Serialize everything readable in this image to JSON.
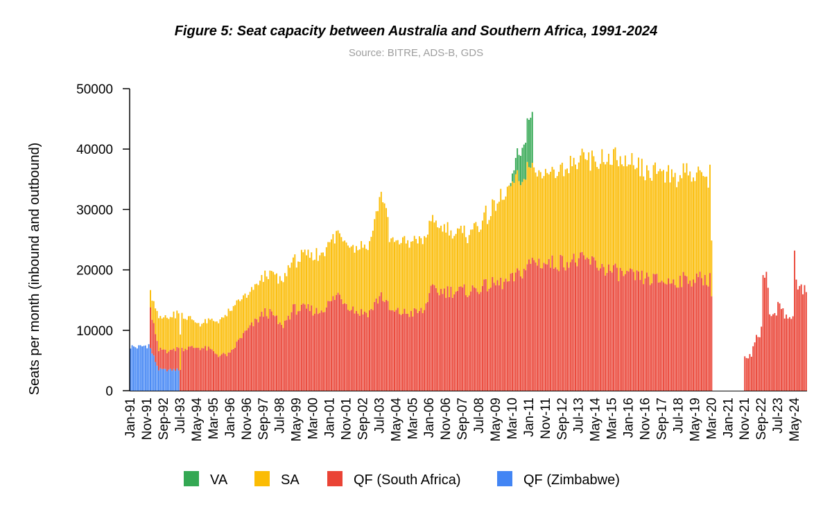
{
  "colors": {
    "VA": "#34a853",
    "SA": "#fbbc04",
    "QF (South Africa)": "#ea4335",
    "QF (Zimbabwe)": "#4285f4"
  },
  "chart_data": {
    "type": "bar",
    "stacked": true,
    "title": "Figure 5: Seat capacity between Australia and Southern Africa, 1991-2024",
    "subtitle": "Source: BITRE, ADS-B, GDS",
    "xlabel": "",
    "ylabel": "Seats per month (inbound and outbound)",
    "ylim": [
      0,
      50000
    ],
    "yticks": [
      0,
      10000,
      20000,
      30000,
      40000,
      50000
    ],
    "x_range": [
      "Jan-91",
      "Dec-24"
    ],
    "xtick_labels": [
      "Jan-91",
      "Nov-91",
      "Sep-92",
      "Jul-93",
      "May-94",
      "Mar-95",
      "Jan-96",
      "Nov-96",
      "Sep-97",
      "Jul-98",
      "May-99",
      "Mar-00",
      "Jan-01",
      "Nov-01",
      "Sep-02",
      "Jul-03",
      "May-04",
      "Mar-05",
      "Jan-06",
      "Nov-06",
      "Sep-07",
      "Jul-08",
      "May-09",
      "Mar-10",
      "Jan-11",
      "Nov-11",
      "Sep-12",
      "Jul-13",
      "May-14",
      "Mar-15",
      "Jan-16",
      "Nov-16",
      "Sep-17",
      "Jul-18",
      "May-19",
      "Mar-20",
      "Jan-21",
      "Nov-21",
      "Sep-22",
      "Jul-23",
      "May-24"
    ],
    "legend": [
      "VA",
      "SA",
      "QF (South Africa)",
      "QF (Zimbabwe)"
    ],
    "legend_position": "bottom",
    "series": [
      {
        "name": "QF (Zimbabwe)",
        "key": "zim",
        "points": [
          [
            "Jan-91",
            7300
          ],
          [
            "Jun-91",
            7200
          ],
          [
            "Dec-91",
            7600
          ],
          [
            "Jun-92",
            3500
          ],
          [
            "Dec-92",
            3400
          ],
          [
            "Jun-93",
            3500
          ],
          [
            "Jul-93",
            0
          ]
        ]
      },
      {
        "name": "QF (South Africa)",
        "key": "qfsa",
        "points": [
          [
            "Jan-91",
            0
          ],
          [
            "Dec-91",
            0
          ],
          [
            "Jan-92",
            6500
          ],
          [
            "Jun-92",
            3200
          ],
          [
            "Jan-93",
            3200
          ],
          [
            "Jul-93",
            3700
          ],
          [
            "Aug-93",
            7000
          ],
          [
            "Jun-94",
            7200
          ],
          [
            "Jan-95",
            6800
          ],
          [
            "Jun-95",
            5900
          ],
          [
            "Jan-96",
            6000
          ],
          [
            "Jul-96",
            8700
          ],
          [
            "Mar-97",
            11000
          ],
          [
            "Oct-97",
            13000
          ],
          [
            "Mar-98",
            12500
          ],
          [
            "Aug-98",
            10500
          ],
          [
            "Mar-99",
            13500
          ],
          [
            "Jan-00",
            13500
          ],
          [
            "Jun-00",
            13000
          ],
          [
            "Jan-01",
            14500
          ],
          [
            "Jun-01",
            16000
          ],
          [
            "Jan-02",
            14000
          ],
          [
            "Jun-02",
            13000
          ],
          [
            "Jan-03",
            13000
          ],
          [
            "Aug-03",
            16000
          ],
          [
            "Feb-04",
            13000
          ],
          [
            "Jun-04",
            13000
          ],
          [
            "Jan-05",
            12800
          ],
          [
            "Oct-05",
            13200
          ],
          [
            "Jan-06",
            16500
          ],
          [
            "Jan-07",
            16500
          ],
          [
            "Jan-08",
            16500
          ],
          [
            "Jan-09",
            17500
          ],
          [
            "Jan-10",
            18000
          ],
          [
            "Oct-10",
            20000
          ],
          [
            "Mar-11",
            21500
          ],
          [
            "Jan-12",
            21000
          ],
          [
            "Jan-13",
            21500
          ],
          [
            "Jan-14",
            21500
          ],
          [
            "Jan-15",
            20000
          ],
          [
            "Jan-16",
            19000
          ],
          [
            "Jan-17",
            18500
          ],
          [
            "Jan-18",
            18000
          ],
          [
            "Jan-19",
            18500
          ],
          [
            "Feb-20",
            18500
          ],
          [
            "Mar-20",
            16500
          ],
          [
            "Apr-20",
            0
          ],
          [
            "Oct-21",
            0
          ],
          [
            "Nov-21",
            5500
          ],
          [
            "Mar-22",
            5800
          ],
          [
            "Apr-22",
            7800
          ],
          [
            "Aug-22",
            9500
          ],
          [
            "Sep-22",
            11000
          ],
          [
            "Oct-22",
            20500
          ],
          [
            "Jan-23",
            18000
          ],
          [
            "Feb-23",
            12500
          ],
          [
            "Jun-23",
            12300
          ],
          [
            "Jul-23",
            14500
          ],
          [
            "Oct-23",
            14500
          ],
          [
            "Nov-23",
            12200
          ],
          [
            "Feb-24",
            12300
          ],
          [
            "Apr-24",
            12500
          ],
          [
            "May-24",
            22000
          ],
          [
            "Jul-24",
            17000
          ],
          [
            "Dec-24",
            16500
          ]
        ]
      },
      {
        "name": "SA",
        "key": "sa",
        "points": [
          [
            "Jan-91",
            0
          ],
          [
            "Dec-91",
            0
          ],
          [
            "Jan-92",
            2800
          ],
          [
            "Jun-92",
            5500
          ],
          [
            "Jun-93",
            5800
          ],
          [
            "Jun-94",
            4000
          ],
          [
            "Jun-95",
            5500
          ],
          [
            "Jan-96",
            7000
          ],
          [
            "Jan-97",
            5500
          ],
          [
            "Jan-98",
            6500
          ],
          [
            "Jan-99",
            8000
          ],
          [
            "Jan-00",
            9000
          ],
          [
            "Jan-01",
            10000
          ],
          [
            "Jan-02",
            10000
          ],
          [
            "Jan-03",
            11000
          ],
          [
            "Oct-03",
            17500
          ],
          [
            "Jan-04",
            11500
          ],
          [
            "Jan-05",
            12000
          ],
          [
            "Jan-06",
            11500
          ],
          [
            "Jan-07",
            10000
          ],
          [
            "Jan-08",
            9500
          ],
          [
            "Jan-09",
            12000
          ],
          [
            "Jan-10",
            15000
          ],
          [
            "Jan-11",
            16000
          ],
          [
            "Jan-12",
            15000
          ],
          [
            "Jan-13",
            16500
          ],
          [
            "Jan-14",
            16500
          ],
          [
            "Jan-15",
            18500
          ],
          [
            "Jan-16",
            18500
          ],
          [
            "Jan-17",
            17000
          ],
          [
            "Jan-18",
            18000
          ],
          [
            "Jan-19",
            17500
          ],
          [
            "Feb-20",
            17000
          ],
          [
            "Mar-20",
            9000
          ],
          [
            "Apr-20",
            0
          ],
          [
            "Dec-24",
            0
          ]
        ]
      },
      {
        "name": "VA",
        "key": "va",
        "points": [
          [
            "Jan-91",
            0
          ],
          [
            "Jan-10",
            0
          ],
          [
            "Feb-10",
            500
          ],
          [
            "Jun-10",
            3500
          ],
          [
            "Oct-10",
            6000
          ],
          [
            "Jan-11",
            7500
          ],
          [
            "Mar-11",
            9000
          ],
          [
            "Apr-11",
            0
          ],
          [
            "Dec-24",
            0
          ]
        ]
      }
    ]
  }
}
